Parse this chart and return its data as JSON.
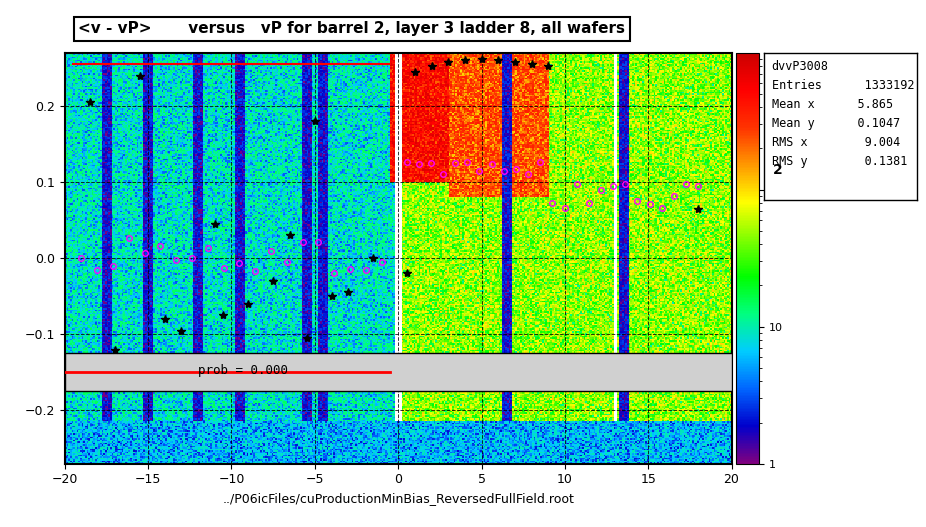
{
  "title": "<v - vP>       versus   vP for barrel 2, layer 3 ladder 8, all wafers",
  "xlabel": "../P06icFiles/cuProductionMinBias_ReversedFullField.root",
  "stats_title": "dvvP3008",
  "entries": "1333192",
  "mean_x": "5.865",
  "mean_y": "0.1047",
  "rms_x": "9.004",
  "rms_y": "0.1381",
  "xmin": -20,
  "xmax": 20,
  "ymin": -0.27,
  "ymax": 0.27,
  "colorbar_label": "2",
  "prob_text": "prob = 0.000",
  "background_color": "#ffffff",
  "plot_bg": "#e8e8e8"
}
